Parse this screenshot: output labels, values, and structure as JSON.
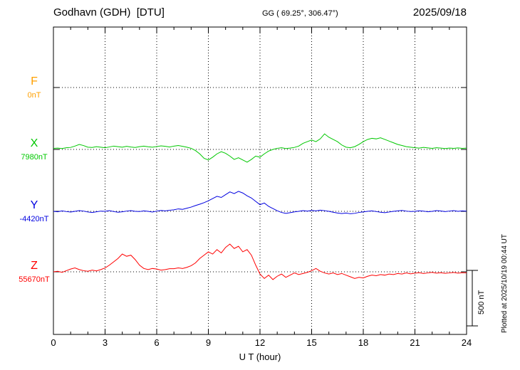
{
  "header": {
    "title": "Godhavn (GDH)  [DTU]",
    "coords": "GG ( 69.25°, 306.47°)",
    "date": "2025/09/18"
  },
  "footer_note": "Plotted at 2025/10/19 00:44 UT",
  "chart_data": {
    "type": "line",
    "title": "Godhavn (GDH)  [DTU]",
    "subtitle": "GG ( 69.25°, 306.47°)",
    "date": "2025/09/18",
    "xlabel": "U T (hour)",
    "x_range": [
      0,
      24
    ],
    "x_ticks": [
      "0",
      "3",
      "6",
      "9",
      "12",
      "15",
      "18",
      "21",
      "24"
    ],
    "x_step_hours": 0.25,
    "grid": "dotted horizontal baseline per component, dotted vertical line every 3 hours",
    "scale_bar": {
      "label": "500 nT",
      "nT": 500
    },
    "series": [
      {
        "name": "F",
        "baseline_label": "0nT",
        "color": "#FFA000",
        "values": []
      },
      {
        "name": "X",
        "baseline_label": "7980nT",
        "color": "#00C800",
        "values": [
          10,
          12,
          8,
          15,
          18,
          30,
          45,
          35,
          20,
          18,
          25,
          20,
          15,
          22,
          30,
          25,
          20,
          28,
          22,
          18,
          25,
          30,
          24,
          20,
          26,
          32,
          28,
          22,
          30,
          35,
          28,
          20,
          10,
          -10,
          -40,
          -80,
          -95,
          -70,
          -40,
          -20,
          -35,
          -60,
          -90,
          -75,
          -95,
          -115,
          -90,
          -60,
          -70,
          -40,
          -15,
          0,
          10,
          15,
          8,
          12,
          18,
          30,
          55,
          70,
          85,
          70,
          95,
          140,
          110,
          90,
          70,
          40,
          20,
          15,
          25,
          45,
          70,
          90,
          100,
          95,
          105,
          90,
          75,
          60,
          45,
          35,
          25,
          20,
          15,
          12,
          18,
          14,
          10,
          15,
          12,
          8,
          12,
          10,
          14,
          10,
          12
        ]
      },
      {
        "name": "Y",
        "baseline_label": "-4420nT",
        "color": "#0000E0",
        "values": [
          0,
          -4,
          4,
          -2,
          -6,
          0,
          6,
          2,
          -6,
          -10,
          -4,
          2,
          0,
          6,
          -2,
          -8,
          -4,
          2,
          6,
          0,
          -2,
          4,
          0,
          -6,
          2,
          8,
          4,
          10,
          14,
          22,
          18,
          28,
          38,
          52,
          64,
          78,
          95,
          115,
          135,
          125,
          150,
          175,
          160,
          180,
          165,
          140,
          120,
          90,
          60,
          75,
          45,
          25,
          5,
          -10,
          -18,
          -12,
          -5,
          0,
          6,
          2,
          8,
          4,
          10,
          6,
          0,
          -8,
          -15,
          -20,
          -15,
          -22,
          -18,
          -10,
          -5,
          0,
          4,
          -2,
          -8,
          -12,
          -6,
          0,
          4,
          8,
          2,
          -2,
          0,
          5,
          2,
          -4,
          0,
          6,
          3,
          -2,
          2,
          6,
          0,
          4,
          2
        ]
      },
      {
        "name": "Z",
        "baseline_label": "55670nT",
        "color": "#FF0000",
        "values": [
          0,
          5,
          -5,
          10,
          25,
          35,
          20,
          10,
          5,
          15,
          8,
          20,
          35,
          60,
          90,
          120,
          160,
          140,
          150,
          110,
          60,
          30,
          20,
          30,
          25,
          15,
          20,
          28,
          28,
          35,
          30,
          40,
          55,
          80,
          120,
          150,
          180,
          160,
          200,
          170,
          220,
          250,
          210,
          230,
          180,
          200,
          150,
          60,
          -20,
          -60,
          -30,
          -70,
          -40,
          -20,
          -50,
          -30,
          -10,
          -25,
          -15,
          -5,
          10,
          30,
          5,
          -10,
          -20,
          -10,
          -25,
          -15,
          -30,
          -45,
          -60,
          -50,
          -55,
          -40,
          -30,
          -35,
          -25,
          -30,
          -20,
          -25,
          -15,
          -20,
          -10,
          -18,
          -12,
          -8,
          -15,
          -10,
          -5,
          -12,
          -8,
          -14,
          -10,
          -6,
          -12,
          -8,
          -10
        ]
      }
    ]
  }
}
